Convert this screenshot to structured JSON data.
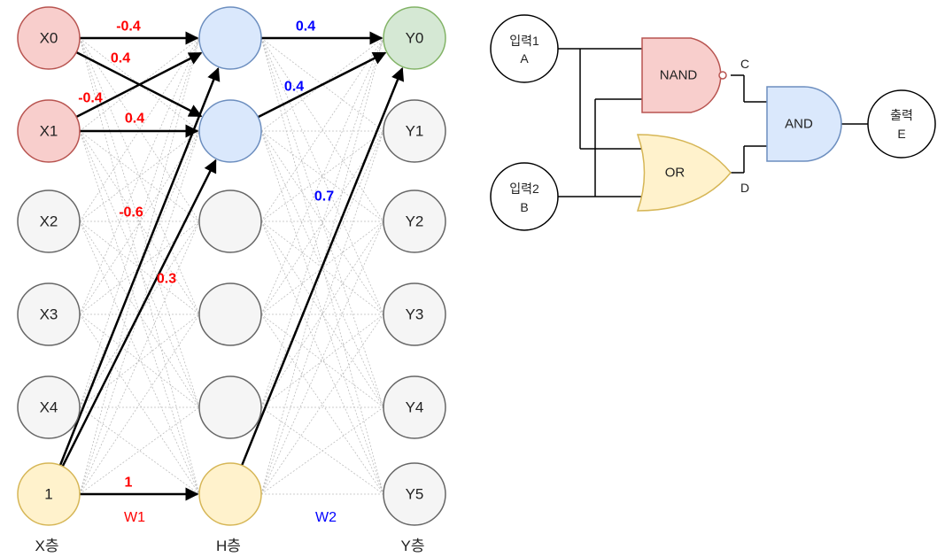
{
  "network": {
    "colors": {
      "x_active_fill": "#f8cecc",
      "x_active_stroke": "#b85450",
      "h_active_fill": "#dae8fc",
      "h_active_stroke": "#6c8ebf",
      "y_active_fill": "#d5e8d4",
      "y_active_stroke": "#82b366",
      "bias_fill": "#fff2cc",
      "bias_stroke": "#d6b656",
      "inactive_fill": "#f5f5f5",
      "inactive_stroke": "#666666",
      "w1_color": "#ff0000",
      "w2_color": "#0000ff"
    },
    "x_nodes": [
      "X0",
      "X1",
      "X2",
      "X3",
      "X4",
      "1"
    ],
    "h_nodes": [
      "",
      "",
      "",
      "",
      "",
      ""
    ],
    "y_nodes": [
      "Y0",
      "Y1",
      "Y2",
      "Y3",
      "Y4",
      "Y5"
    ],
    "layer_labels": {
      "x": "X층",
      "h": "H층",
      "y": "Y층"
    },
    "w1_label": "W1",
    "w2_label": "W2",
    "w1_edges": [
      {
        "from": 0,
        "to": 0,
        "weight": "-0.4"
      },
      {
        "from": 0,
        "to": 1,
        "weight": "0.4"
      },
      {
        "from": 1,
        "to": 0,
        "weight": "-0.4"
      },
      {
        "from": 1,
        "to": 1,
        "weight": "0.4"
      },
      {
        "from": 5,
        "to": 0,
        "weight": "-0.6"
      },
      {
        "from": 5,
        "to": 1,
        "weight": "0.3"
      },
      {
        "from": 5,
        "to": 5,
        "weight": "1"
      }
    ],
    "w2_edges": [
      {
        "from": 0,
        "to": 0,
        "weight": "0.4"
      },
      {
        "from": 1,
        "to": 0,
        "weight": "0.4"
      },
      {
        "from": 5,
        "to": 0,
        "weight": "0.7"
      }
    ]
  },
  "logic": {
    "input_a_line1": "입력1",
    "input_a_line2": "A",
    "input_b_line1": "입력2",
    "input_b_line2": "B",
    "nand_label": "NAND",
    "or_label": "OR",
    "and_label": "AND",
    "wire_c": "C",
    "wire_d": "D",
    "output_line1": "출력",
    "output_line2": "E",
    "colors": {
      "nand_fill": "#f8cecc",
      "nand_stroke": "#b85450",
      "or_fill": "#fff2cc",
      "or_stroke": "#d6b656",
      "and_fill": "#dae8fc",
      "and_stroke": "#6c8ebf"
    }
  }
}
